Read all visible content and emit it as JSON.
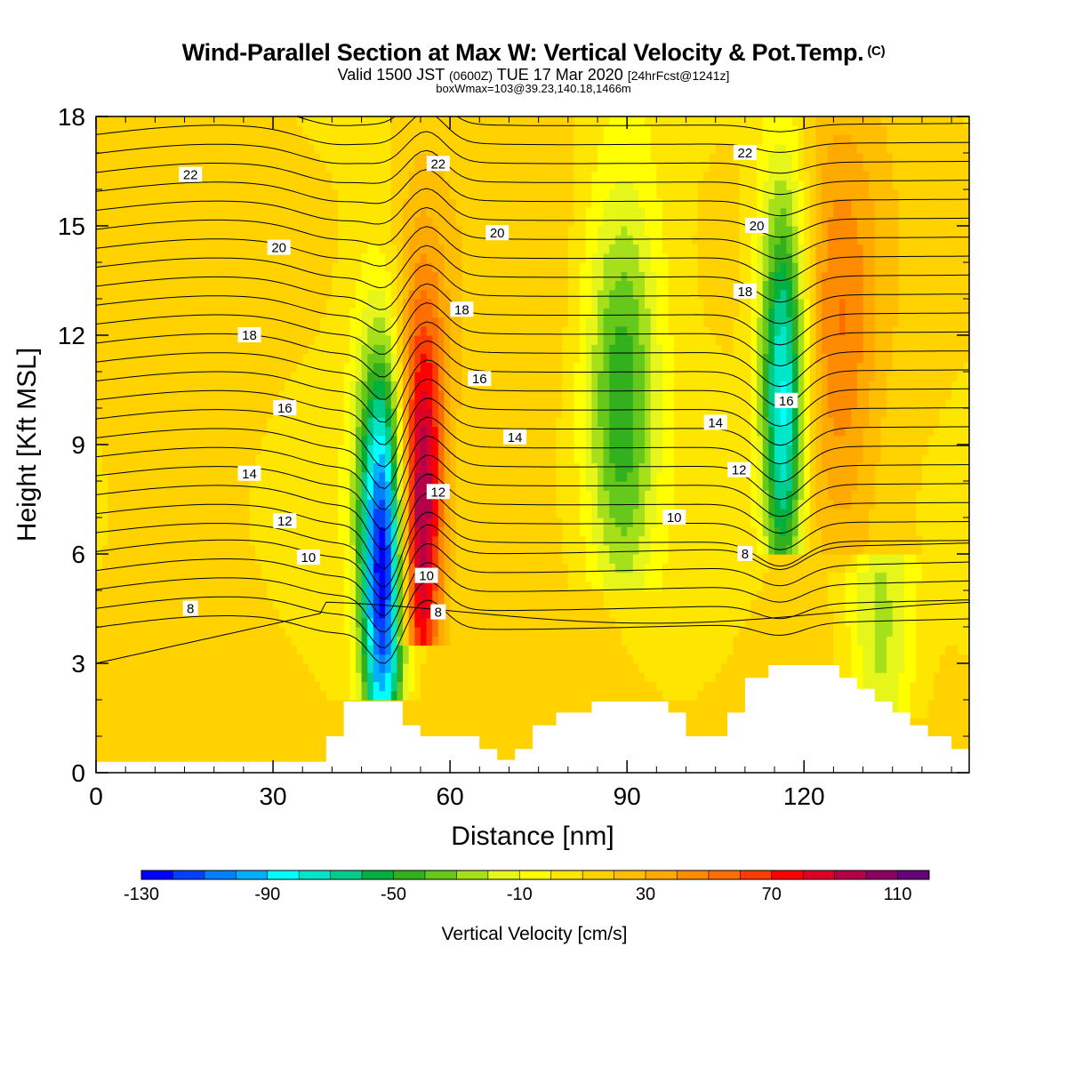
{
  "header": {
    "title": "Wind-Parallel Section at Max W: Vertical Velocity & Pot.Temp.",
    "copyright": "(C)",
    "valid_prefix": "Valid 1500 JST",
    "valid_utc": "(0600Z)",
    "valid_date": "TUE 17 Mar 2020",
    "forecast": "[24hrFcst@1241z]",
    "box_info": "boxWmax=103@39.23,140.18,1466m"
  },
  "chart_data": {
    "type": "heatmap",
    "xlabel": "Distance [nm]",
    "ylabel": "Height [Kft MSL]",
    "xlim": [
      0,
      148
    ],
    "ylim": [
      0,
      18
    ],
    "x_ticks": [
      0,
      30,
      60,
      90,
      120
    ],
    "y_ticks": [
      0,
      3,
      6,
      9,
      12,
      15,
      18
    ],
    "colorbar": {
      "label": "Vertical Velocity [cm/s]",
      "tick_labels": [
        -130,
        -90,
        -50,
        -10,
        30,
        70,
        110
      ],
      "levels_min": -130,
      "levels_max": 120,
      "colors": [
        "#0000ff",
        "#0040ff",
        "#0080ff",
        "#00b0ff",
        "#00ffff",
        "#00e6c8",
        "#00cc8c",
        "#00b040",
        "#33b01e",
        "#66c81a",
        "#a6e01a",
        "#e6f51a",
        "#ffff00",
        "#ffe600",
        "#ffd200",
        "#ffbe00",
        "#ffaa00",
        "#ff8c00",
        "#ff6e00",
        "#ff3c00",
        "#ff0000",
        "#dc0028",
        "#b4004b",
        "#8c0064",
        "#640078"
      ]
    },
    "w_features": [
      {
        "x": 48.5,
        "y_min": 2.0,
        "y_max": 18,
        "peak_height": 5.5,
        "value": -125
      },
      {
        "x": 55.0,
        "y_min": 3.5,
        "y_max": 18,
        "peak_height": 7.5,
        "value": 110
      },
      {
        "x": 89.0,
        "y_min": 5.0,
        "y_max": 18,
        "peak_height": 10.5,
        "value": -45
      },
      {
        "x": 116.5,
        "y_min": 6.0,
        "y_max": 18,
        "peak_height": 10.5,
        "value": -85
      },
      {
        "x": 126.0,
        "y_min": 5.5,
        "y_max": 18,
        "peak_height": 12.0,
        "value": 45
      },
      {
        "x": 133.0,
        "y_min": 1.5,
        "y_max": 6.0,
        "peak_height": 3.5,
        "value": -25
      }
    ],
    "terrain": [
      [
        0,
        0.3
      ],
      [
        39,
        0.3
      ],
      [
        39,
        1.0
      ],
      [
        42,
        1.0
      ],
      [
        42,
        1.95
      ],
      [
        52,
        1.95
      ],
      [
        52,
        1.3
      ],
      [
        55,
        1.3
      ],
      [
        55,
        1.0
      ],
      [
        65,
        1.0
      ],
      [
        65,
        0.65
      ],
      [
        68,
        0.65
      ],
      [
        68,
        0.35
      ],
      [
        71,
        0.35
      ],
      [
        71,
        0.65
      ],
      [
        74,
        0.65
      ],
      [
        74,
        1.3
      ],
      [
        78,
        1.3
      ],
      [
        78,
        1.65
      ],
      [
        84,
        1.65
      ],
      [
        84,
        1.95
      ],
      [
        97,
        1.95
      ],
      [
        97,
        1.65
      ],
      [
        100,
        1.65
      ],
      [
        100,
        1.0
      ],
      [
        107,
        1.0
      ],
      [
        107,
        1.65
      ],
      [
        110,
        1.65
      ],
      [
        110,
        2.6
      ],
      [
        114,
        2.6
      ],
      [
        114,
        2.95
      ],
      [
        126,
        2.95
      ],
      [
        126,
        2.6
      ],
      [
        129,
        2.6
      ],
      [
        129,
        2.3
      ],
      [
        132,
        2.3
      ],
      [
        132,
        1.95
      ],
      [
        135,
        1.95
      ],
      [
        135,
        1.65
      ],
      [
        138,
        1.65
      ],
      [
        138,
        1.3
      ],
      [
        141,
        1.3
      ],
      [
        141,
        1.0
      ],
      [
        145,
        1.0
      ],
      [
        145,
        0.65
      ],
      [
        148,
        0.65
      ]
    ],
    "isentropes": [
      {
        "label": "8",
        "label_pos": [
          16,
          4.5
        ]
      },
      {
        "label": "10",
        "label_pos": [
          36,
          5.9
        ]
      },
      {
        "label": "12",
        "label_pos": [
          32,
          6.9
        ]
      },
      {
        "label": "14",
        "label_pos": [
          26,
          8.2
        ]
      },
      {
        "label": "16",
        "label_pos": [
          32,
          10.0
        ]
      },
      {
        "label": "18",
        "label_pos": [
          26,
          12.0
        ]
      },
      {
        "label": "20",
        "label_pos": [
          31,
          14.4
        ]
      },
      {
        "label": "22",
        "label_pos": [
          16,
          16.4
        ]
      }
    ],
    "isentrope_labels_extra": [
      {
        "label": "8",
        "pos": [
          58,
          4.4
        ]
      },
      {
        "label": "10",
        "pos": [
          56,
          5.4
        ]
      },
      {
        "label": "12",
        "pos": [
          58,
          7.7
        ]
      },
      {
        "label": "14",
        "pos": [
          71,
          9.2
        ]
      },
      {
        "label": "16",
        "pos": [
          65,
          10.8
        ]
      },
      {
        "label": "18",
        "pos": [
          62,
          12.7
        ]
      },
      {
        "label": "20",
        "pos": [
          68,
          14.8
        ]
      },
      {
        "label": "22",
        "pos": [
          58,
          16.7
        ]
      },
      {
        "label": "8",
        "pos": [
          110,
          6.0
        ]
      },
      {
        "label": "10",
        "pos": [
          98,
          7.0
        ]
      },
      {
        "label": "12",
        "pos": [
          109,
          8.3
        ]
      },
      {
        "label": "14",
        "pos": [
          105,
          9.6
        ]
      },
      {
        "label": "16",
        "pos": [
          117,
          10.2
        ]
      },
      {
        "label": "18",
        "pos": [
          110,
          13.2
        ]
      },
      {
        "label": "20",
        "pos": [
          112,
          15.0
        ]
      },
      {
        "label": "22",
        "pos": [
          110,
          17.0
        ]
      }
    ]
  }
}
